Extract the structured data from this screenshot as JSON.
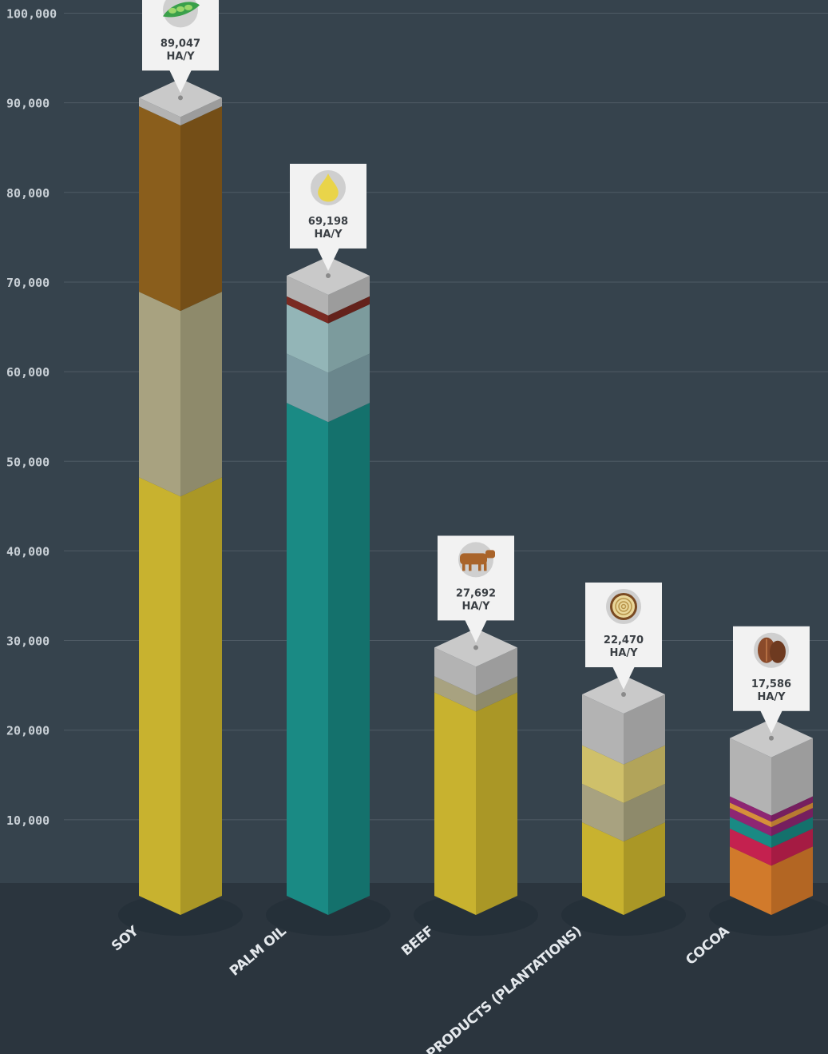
{
  "chart_data": {
    "type": "bar",
    "title": "",
    "xlabel": "",
    "ylabel": "",
    "ylim": [
      0,
      100000
    ],
    "yticks": [
      "10,000",
      "20,000",
      "30,000",
      "40,000",
      "50,000",
      "60,000",
      "70,000",
      "80,000",
      "90,000",
      "100,000"
    ],
    "grid": true,
    "bars": [
      {
        "category": "SOY",
        "value": 89047,
        "value_label": "89,047",
        "unit_label": "HA/Y",
        "icon": "soybean-pod-icon",
        "segments": [
          {
            "value": 46700,
            "front": "#c8b22f",
            "side": "#aa9726"
          },
          {
            "value": 20700,
            "front": "#a8a280",
            "side": "#8e8a6b"
          },
          {
            "value": 20700,
            "front": "#8a5e1c",
            "side": "#744e17"
          }
        ]
      },
      {
        "category": "PALM OIL",
        "value": 69198,
        "value_label": "69,198",
        "unit_label": "HA/Y",
        "icon": "palm-oil-drop-icon",
        "segments": [
          {
            "value": 55000,
            "front": "#1a8a84",
            "side": "#14716c"
          },
          {
            "value": 5500,
            "front": "#7f9ea5",
            "side": "#6a868c"
          },
          {
            "value": 5500,
            "front": "#93b5b7",
            "side": "#7c9b9d"
          },
          {
            "value": 900,
            "front": "#7a2a22",
            "side": "#64221b"
          }
        ]
      },
      {
        "category": "BEEF",
        "value": 27692,
        "value_label": "27,692",
        "unit_label": "HA/Y",
        "icon": "cow-icon",
        "segments": [
          {
            "value": 22700,
            "front": "#c8b22f",
            "side": "#aa9726"
          },
          {
            "value": 1800,
            "front": "#a8a280",
            "side": "#8e8a6b"
          }
        ]
      },
      {
        "category": "WOOD PRODUCTS (PLANTATIONS)",
        "value": 22470,
        "value_label": "22,470",
        "unit_label": "HA/Y",
        "icon": "log-rings-icon",
        "segments": [
          {
            "value": 8200,
            "front": "#c8b22f",
            "side": "#aa9726"
          },
          {
            "value": 4300,
            "front": "#a8a280",
            "side": "#8e8a6b"
          },
          {
            "value": 4300,
            "front": "#cfc06a",
            "side": "#b2a45a"
          }
        ]
      },
      {
        "category": "COCOA",
        "value": 17586,
        "value_label": "17,586",
        "unit_label": "HA/Y",
        "icon": "cocoa-pod-icon",
        "segments": [
          {
            "value": 5500,
            "front": "#d17a2b",
            "side": "#b36623"
          },
          {
            "value": 2000,
            "front": "#c4214f",
            "side": "#a51b43"
          },
          {
            "value": 1300,
            "front": "#1a8a84",
            "side": "#14716c"
          },
          {
            "value": 1000,
            "front": "#8e2673",
            "side": "#761f5f"
          },
          {
            "value": 600,
            "front": "#d68f3a",
            "side": "#b87a31"
          },
          {
            "value": 700,
            "front": "#8e2673",
            "side": "#761f5f"
          }
        ]
      }
    ],
    "colors": {
      "background": "#2e3a44",
      "grid": "#56626c",
      "cap_top": "#c9c9c9",
      "remainder_front": "#b3b3b3",
      "remainder_side": "#9c9c9c",
      "callout_bg": "#f2f2f2"
    }
  }
}
